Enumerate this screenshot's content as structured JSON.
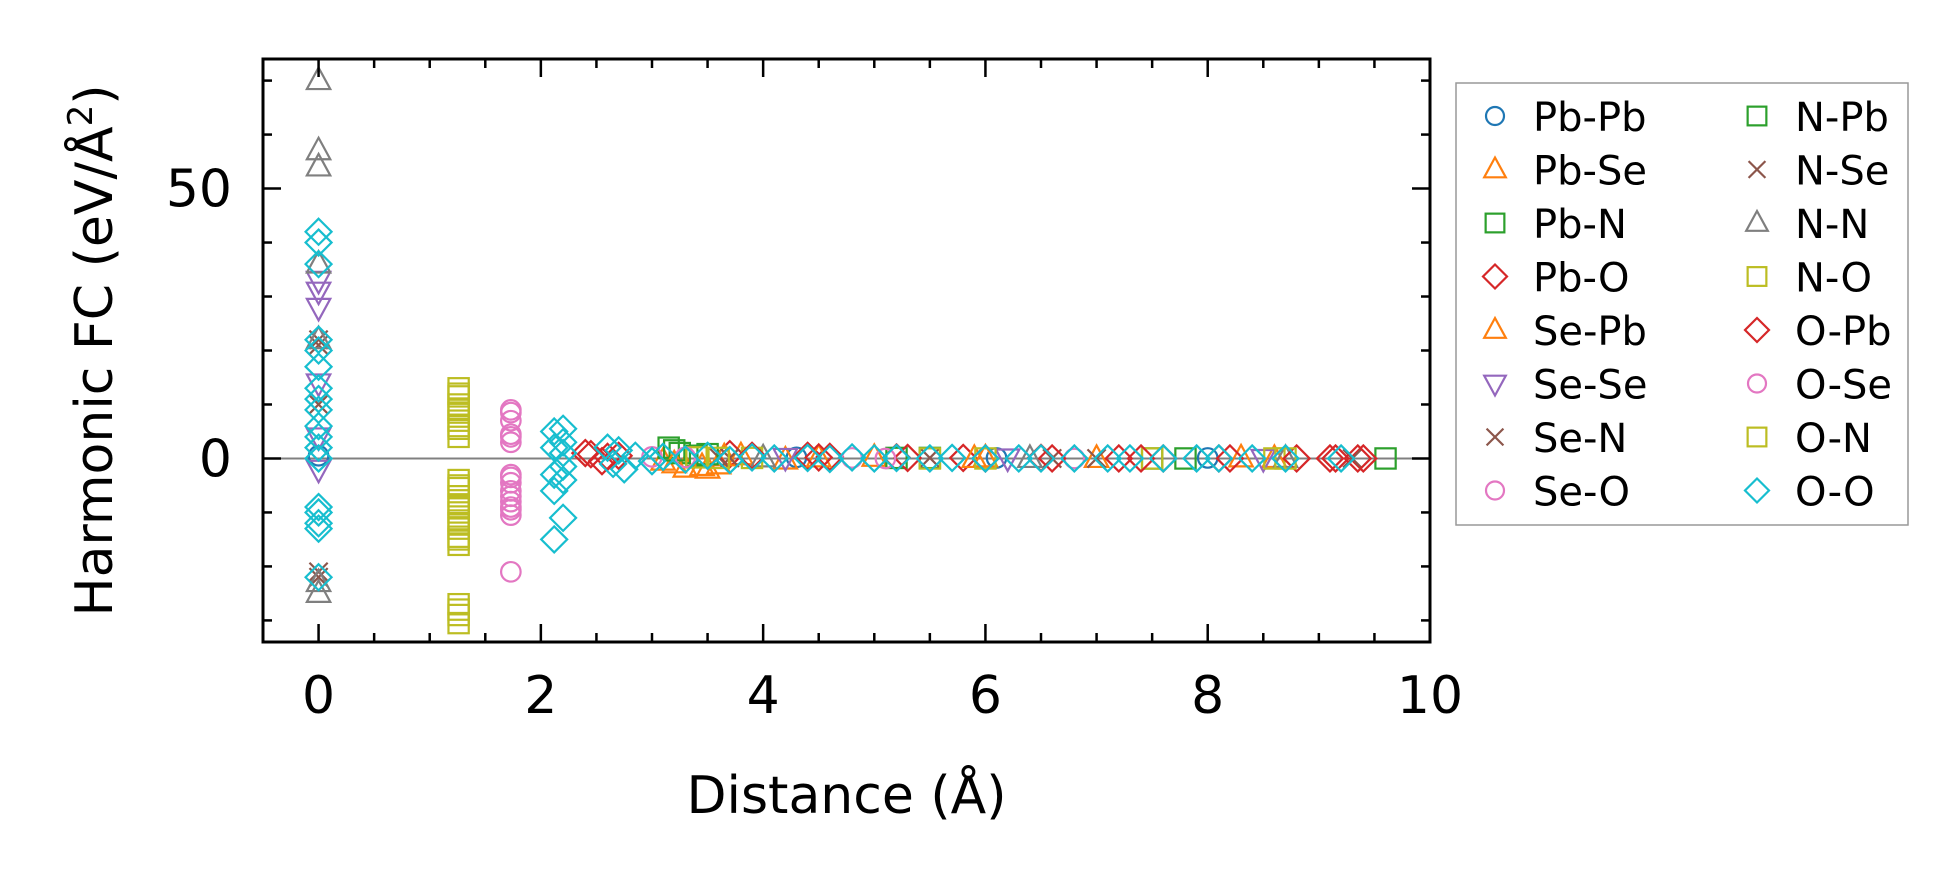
{
  "chart_data": {
    "type": "scatter",
    "title": "",
    "xlabel": "Distance (Å)",
    "ylabel_main": "Harmonic FC (eV/Å",
    "ylabel_sup": "2",
    "ylabel_close": ")",
    "xlim": [
      -0.5,
      10
    ],
    "ylim": [
      -34,
      74
    ],
    "xticks": [
      0,
      2,
      4,
      6,
      8,
      10
    ],
    "xtick_labels": [
      "0",
      "2",
      "4",
      "6",
      "8",
      "10"
    ],
    "yticks": [
      0,
      50
    ],
    "ytick_labels": [
      "0",
      "50"
    ],
    "zero_line": true,
    "grid": false,
    "legend": {
      "placement": "outside-right",
      "columns": 2
    },
    "series": [
      {
        "name": "Pb-Pb",
        "marker": "circle",
        "color": "#1f77b4",
        "points": [
          [
            0.0,
            0.5
          ],
          [
            4.3,
            0.2
          ],
          [
            6.1,
            0.1
          ],
          [
            8.0,
            0.1
          ]
        ]
      },
      {
        "name": "Pb-Se",
        "marker": "triangle-up",
        "color": "#ff7f0e",
        "points": [
          [
            3.1,
            -0.5
          ],
          [
            3.3,
            -1.8
          ],
          [
            3.5,
            -2.0
          ],
          [
            3.6,
            -1.2
          ],
          [
            3.8,
            0.5
          ],
          [
            4.2,
            -0.3
          ],
          [
            5.0,
            0.2
          ],
          [
            6.0,
            0.1
          ],
          [
            7.0,
            0.0
          ],
          [
            8.3,
            0.1
          ]
        ]
      },
      {
        "name": "Pb-N",
        "marker": "square",
        "color": "#2ca02c",
        "points": [
          [
            3.15,
            2.0
          ],
          [
            3.25,
            1.0
          ],
          [
            3.4,
            0.5
          ],
          [
            5.5,
            0.1
          ],
          [
            7.5,
            0.0
          ],
          [
            9.6,
            0.0
          ]
        ]
      },
      {
        "name": "Pb-O",
        "marker": "diamond",
        "color": "#d62728",
        "points": [
          [
            2.4,
            1.0
          ],
          [
            2.55,
            -0.5
          ],
          [
            2.7,
            0.5
          ],
          [
            3.7,
            0.8
          ],
          [
            4.4,
            0.5
          ],
          [
            4.6,
            0.3
          ],
          [
            5.2,
            0.2
          ],
          [
            5.8,
            0.1
          ],
          [
            6.5,
            0.1
          ],
          [
            7.2,
            0.0
          ],
          [
            7.6,
            0.0
          ],
          [
            8.2,
            0.0
          ],
          [
            9.1,
            0.0
          ],
          [
            9.4,
            0.0
          ]
        ]
      },
      {
        "name": "Se-Pb",
        "marker": "triangle-up",
        "color": "#ff7f0e",
        "points": [
          [
            3.2,
            -1.0
          ],
          [
            3.45,
            -1.5
          ],
          [
            3.65,
            0.3
          ],
          [
            4.5,
            0.1
          ],
          [
            5.9,
            0.0
          ],
          [
            8.6,
            0.0
          ]
        ]
      },
      {
        "name": "Se-Se",
        "marker": "triangle-down",
        "color": "#9467bd",
        "points": [
          [
            0.0,
            33.0
          ],
          [
            0.0,
            31.0
          ],
          [
            0.0,
            28.0
          ],
          [
            0.0,
            14.0
          ],
          [
            0.0,
            4.0
          ],
          [
            0.0,
            -2.0
          ],
          [
            4.2,
            0.2
          ],
          [
            6.2,
            0.1
          ],
          [
            8.5,
            0.0
          ]
        ]
      },
      {
        "name": "Se-N",
        "marker": "x",
        "color": "#8c564b",
        "points": [
          [
            0.0,
            22.0
          ],
          [
            0.0,
            10.0
          ],
          [
            0.0,
            -22.0
          ],
          [
            3.6,
            0.2
          ],
          [
            5.5,
            0.1
          ],
          [
            7.0,
            0.0
          ],
          [
            9.3,
            0.0
          ]
        ]
      },
      {
        "name": "Se-O",
        "marker": "circle",
        "color": "#e377c2",
        "points": [
          [
            1.73,
            8.5
          ],
          [
            1.73,
            7.0
          ],
          [
            1.73,
            4.5
          ],
          [
            1.73,
            3.0
          ],
          [
            1.73,
            -3.0
          ],
          [
            1.73,
            -4.5
          ],
          [
            1.73,
            -6.0
          ],
          [
            1.73,
            -8.0
          ],
          [
            1.73,
            -9.5
          ],
          [
            1.73,
            -10.5
          ],
          [
            1.73,
            -21.0
          ],
          [
            3.0,
            0.3
          ],
          [
            4.8,
            0.1
          ],
          [
            6.8,
            0.0
          ]
        ]
      },
      {
        "name": "N-Pb",
        "marker": "square",
        "color": "#2ca02c",
        "points": [
          [
            3.2,
            1.5
          ],
          [
            3.5,
            0.8
          ],
          [
            5.2,
            0.1
          ],
          [
            7.8,
            0.0
          ]
        ]
      },
      {
        "name": "N-Se",
        "marker": "x",
        "color": "#8c564b",
        "points": [
          [
            0.0,
            21.0
          ],
          [
            0.0,
            -21.0
          ],
          [
            3.7,
            0.1
          ],
          [
            6.6,
            0.0
          ]
        ]
      },
      {
        "name": "N-N",
        "marker": "triangle-up",
        "color": "#7f7f7f",
        "points": [
          [
            0.0,
            70.0
          ],
          [
            0.0,
            57.0
          ],
          [
            0.0,
            54.0
          ],
          [
            0.0,
            36.0
          ],
          [
            0.0,
            22.0
          ],
          [
            0.0,
            -23.0
          ],
          [
            0.0,
            -25.0
          ],
          [
            4.0,
            0.1
          ],
          [
            6.4,
            0.0
          ],
          [
            8.7,
            0.0
          ]
        ]
      },
      {
        "name": "N-O",
        "marker": "square",
        "color": "#bcbd22",
        "points": [
          [
            1.26,
            13.0
          ],
          [
            1.26,
            11.5
          ],
          [
            1.26,
            10.0
          ],
          [
            1.26,
            8.5
          ],
          [
            1.26,
            7.0
          ],
          [
            1.26,
            5.5
          ],
          [
            1.26,
            4.0
          ],
          [
            1.26,
            -4.0
          ],
          [
            1.26,
            -5.5
          ],
          [
            1.26,
            -7.0
          ],
          [
            1.26,
            -8.5
          ],
          [
            1.26,
            -10.0
          ],
          [
            1.26,
            -11.5
          ],
          [
            1.26,
            -13.0
          ],
          [
            1.26,
            -14.5
          ],
          [
            1.26,
            -16.0
          ],
          [
            1.26,
            -27.0
          ],
          [
            1.26,
            -29.0
          ],
          [
            1.26,
            -30.5
          ],
          [
            3.4,
            0.2
          ],
          [
            3.9,
            0.1
          ],
          [
            5.5,
            0.0
          ],
          [
            7.5,
            0.0
          ],
          [
            8.6,
            0.0
          ]
        ]
      },
      {
        "name": "O-Pb",
        "marker": "diamond",
        "color": "#d62728",
        "points": [
          [
            2.45,
            0.8
          ],
          [
            2.6,
            0.3
          ],
          [
            3.9,
            0.5
          ],
          [
            4.5,
            0.2
          ],
          [
            5.3,
            0.1
          ],
          [
            6.0,
            0.0
          ],
          [
            6.6,
            0.0
          ],
          [
            7.4,
            0.0
          ],
          [
            8.1,
            0.0
          ],
          [
            8.8,
            0.0
          ],
          [
            9.15,
            0.0
          ],
          [
            9.35,
            0.0
          ]
        ]
      },
      {
        "name": "O-Se",
        "marker": "circle",
        "color": "#e377c2",
        "points": [
          [
            1.73,
            9.0
          ],
          [
            1.73,
            4.0
          ],
          [
            1.73,
            -3.5
          ],
          [
            1.73,
            -7.0
          ],
          [
            1.73,
            -9.0
          ],
          [
            3.3,
            0.2
          ],
          [
            5.1,
            0.0
          ]
        ]
      },
      {
        "name": "O-N",
        "marker": "square",
        "color": "#bcbd22",
        "points": [
          [
            1.26,
            12.0
          ],
          [
            1.26,
            9.0
          ],
          [
            1.26,
            6.0
          ],
          [
            1.26,
            -5.0
          ],
          [
            1.26,
            -9.0
          ],
          [
            1.26,
            -12.0
          ],
          [
            1.26,
            -15.0
          ],
          [
            1.26,
            -28.0
          ],
          [
            3.6,
            0.1
          ],
          [
            6.0,
            0.0
          ],
          [
            8.7,
            0.0
          ]
        ]
      },
      {
        "name": "O-O",
        "marker": "diamond",
        "color": "#17becf",
        "points": [
          [
            0.0,
            42.0
          ],
          [
            0.0,
            40.0
          ],
          [
            0.0,
            36.0
          ],
          [
            0.0,
            22.0
          ],
          [
            0.0,
            20.0
          ],
          [
            0.0,
            17.0
          ],
          [
            0.0,
            13.0
          ],
          [
            0.0,
            11.0
          ],
          [
            0.0,
            9.0
          ],
          [
            0.0,
            6.0
          ],
          [
            0.0,
            4.0
          ],
          [
            0.0,
            2.0
          ],
          [
            0.0,
            0.0
          ],
          [
            0.0,
            -9.0
          ],
          [
            0.0,
            -10.0
          ],
          [
            0.0,
            -12.0
          ],
          [
            0.0,
            -13.0
          ],
          [
            0.0,
            -22.0
          ],
          [
            2.12,
            5.0
          ],
          [
            2.12,
            2.0
          ],
          [
            2.12,
            -3.0
          ],
          [
            2.12,
            -6.0
          ],
          [
            2.12,
            -15.0
          ],
          [
            2.2,
            5.5
          ],
          [
            2.2,
            3.0
          ],
          [
            2.2,
            1.0
          ],
          [
            2.2,
            -1.5
          ],
          [
            2.2,
            -4.0
          ],
          [
            2.2,
            -11.0
          ],
          [
            2.6,
            2.0
          ],
          [
            2.65,
            -1.0
          ],
          [
            2.7,
            1.5
          ],
          [
            2.75,
            -2.0
          ],
          [
            2.85,
            0.5
          ],
          [
            3.0,
            -0.5
          ],
          [
            3.1,
            0.3
          ],
          [
            3.3,
            -0.2
          ],
          [
            3.5,
            0.5
          ],
          [
            3.7,
            -0.3
          ],
          [
            3.9,
            0.2
          ],
          [
            4.1,
            0.0
          ],
          [
            4.4,
            0.1
          ],
          [
            4.6,
            -0.1
          ],
          [
            4.8,
            0.2
          ],
          [
            5.0,
            0.0
          ],
          [
            5.2,
            0.1
          ],
          [
            5.5,
            0.0
          ],
          [
            5.7,
            0.1
          ],
          [
            6.0,
            0.0
          ],
          [
            6.3,
            0.0
          ],
          [
            6.5,
            0.0
          ],
          [
            6.8,
            0.0
          ],
          [
            7.1,
            0.0
          ],
          [
            7.3,
            0.0
          ],
          [
            7.6,
            0.0
          ],
          [
            7.9,
            0.0
          ],
          [
            8.1,
            0.0
          ],
          [
            8.4,
            0.0
          ],
          [
            8.7,
            0.0
          ],
          [
            9.2,
            0.0
          ]
        ]
      }
    ]
  }
}
